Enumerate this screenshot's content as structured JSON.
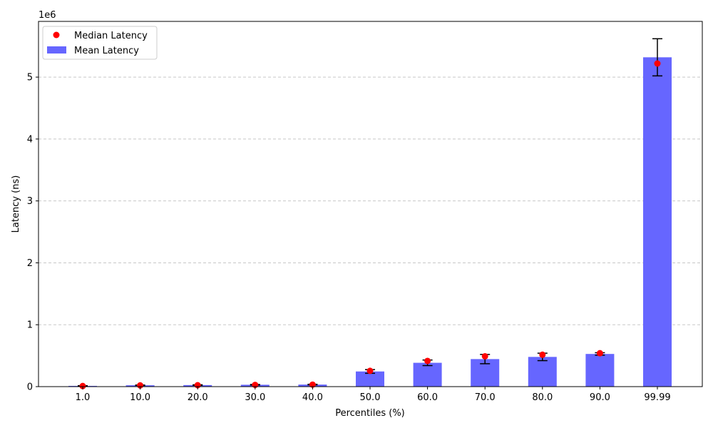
{
  "chart_data": {
    "type": "bar",
    "title": "",
    "xlabel": "Percentiles (%)",
    "ylabel": "Latency (ns)",
    "y_scale_label": "1e6",
    "y_ticks": [
      0,
      1,
      2,
      3,
      4,
      5
    ],
    "ylim": [
      0,
      5.9
    ],
    "grid": "y-dashed",
    "legend_position": "top-left",
    "categories": [
      "1.0",
      "10.0",
      "20.0",
      "30.0",
      "40.0",
      "50.0",
      "60.0",
      "70.0",
      "80.0",
      "90.0",
      "99.99"
    ],
    "series": [
      {
        "name": "Mean Latency",
        "kind": "bar",
        "color": "#6666ff",
        "values": [
          0.012,
          0.022,
          0.025,
          0.03,
          0.033,
          0.245,
          0.385,
          0.445,
          0.48,
          0.528,
          5.32
        ],
        "error": [
          0.003,
          0.004,
          0.005,
          0.005,
          0.005,
          0.03,
          0.045,
          0.075,
          0.06,
          0.02,
          0.3
        ]
      },
      {
        "name": "Median Latency",
        "kind": "scatter",
        "color": "#ff0000",
        "values": [
          0.01,
          0.02,
          0.023,
          0.028,
          0.032,
          0.255,
          0.415,
          0.49,
          0.515,
          0.54,
          5.22
        ]
      }
    ]
  }
}
